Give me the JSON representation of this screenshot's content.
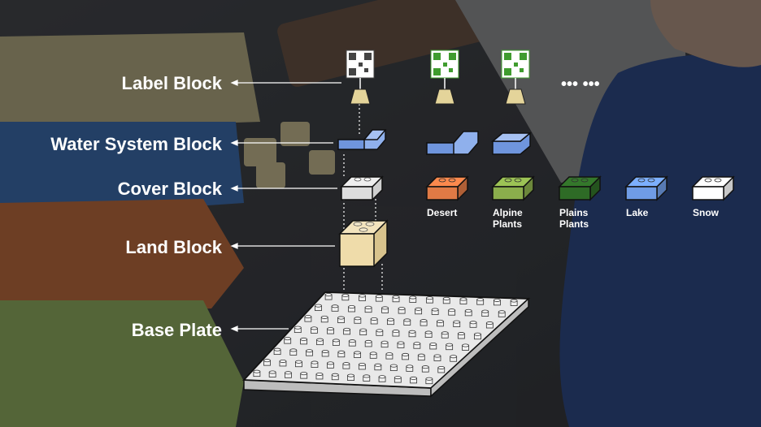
{
  "labels": {
    "label_block": "Label Block",
    "water_system_block": "Water System Block",
    "cover_block": "Cover Block",
    "land_block": "Land Block",
    "base_plate": "Base Plate"
  },
  "ellipsis": "••• •••",
  "cover_types": [
    {
      "name": "Desert",
      "line2": "",
      "color": "#e07a45"
    },
    {
      "name": "Alpine",
      "line2": "Plants",
      "color": "#8bae4c"
    },
    {
      "name": "Plains",
      "line2": "Plants",
      "color": "#2e6b26"
    },
    {
      "name": "Lake",
      "line2": "",
      "color": "#6f9ce6"
    },
    {
      "name": "Snow",
      "line2": "",
      "color": "#ffffff"
    }
  ],
  "colors": {
    "water": "#6f95dd",
    "land": "#efdcaa",
    "cover_grey": "#dddddd",
    "qr_dark_grey": "#444444",
    "qr_green": "#3f9c2e",
    "lego_blue": "#3b6fc2",
    "lego_orange": "#d2662a",
    "lego_green": "#9cc25a",
    "lego_yellow": "#d8c98a"
  }
}
